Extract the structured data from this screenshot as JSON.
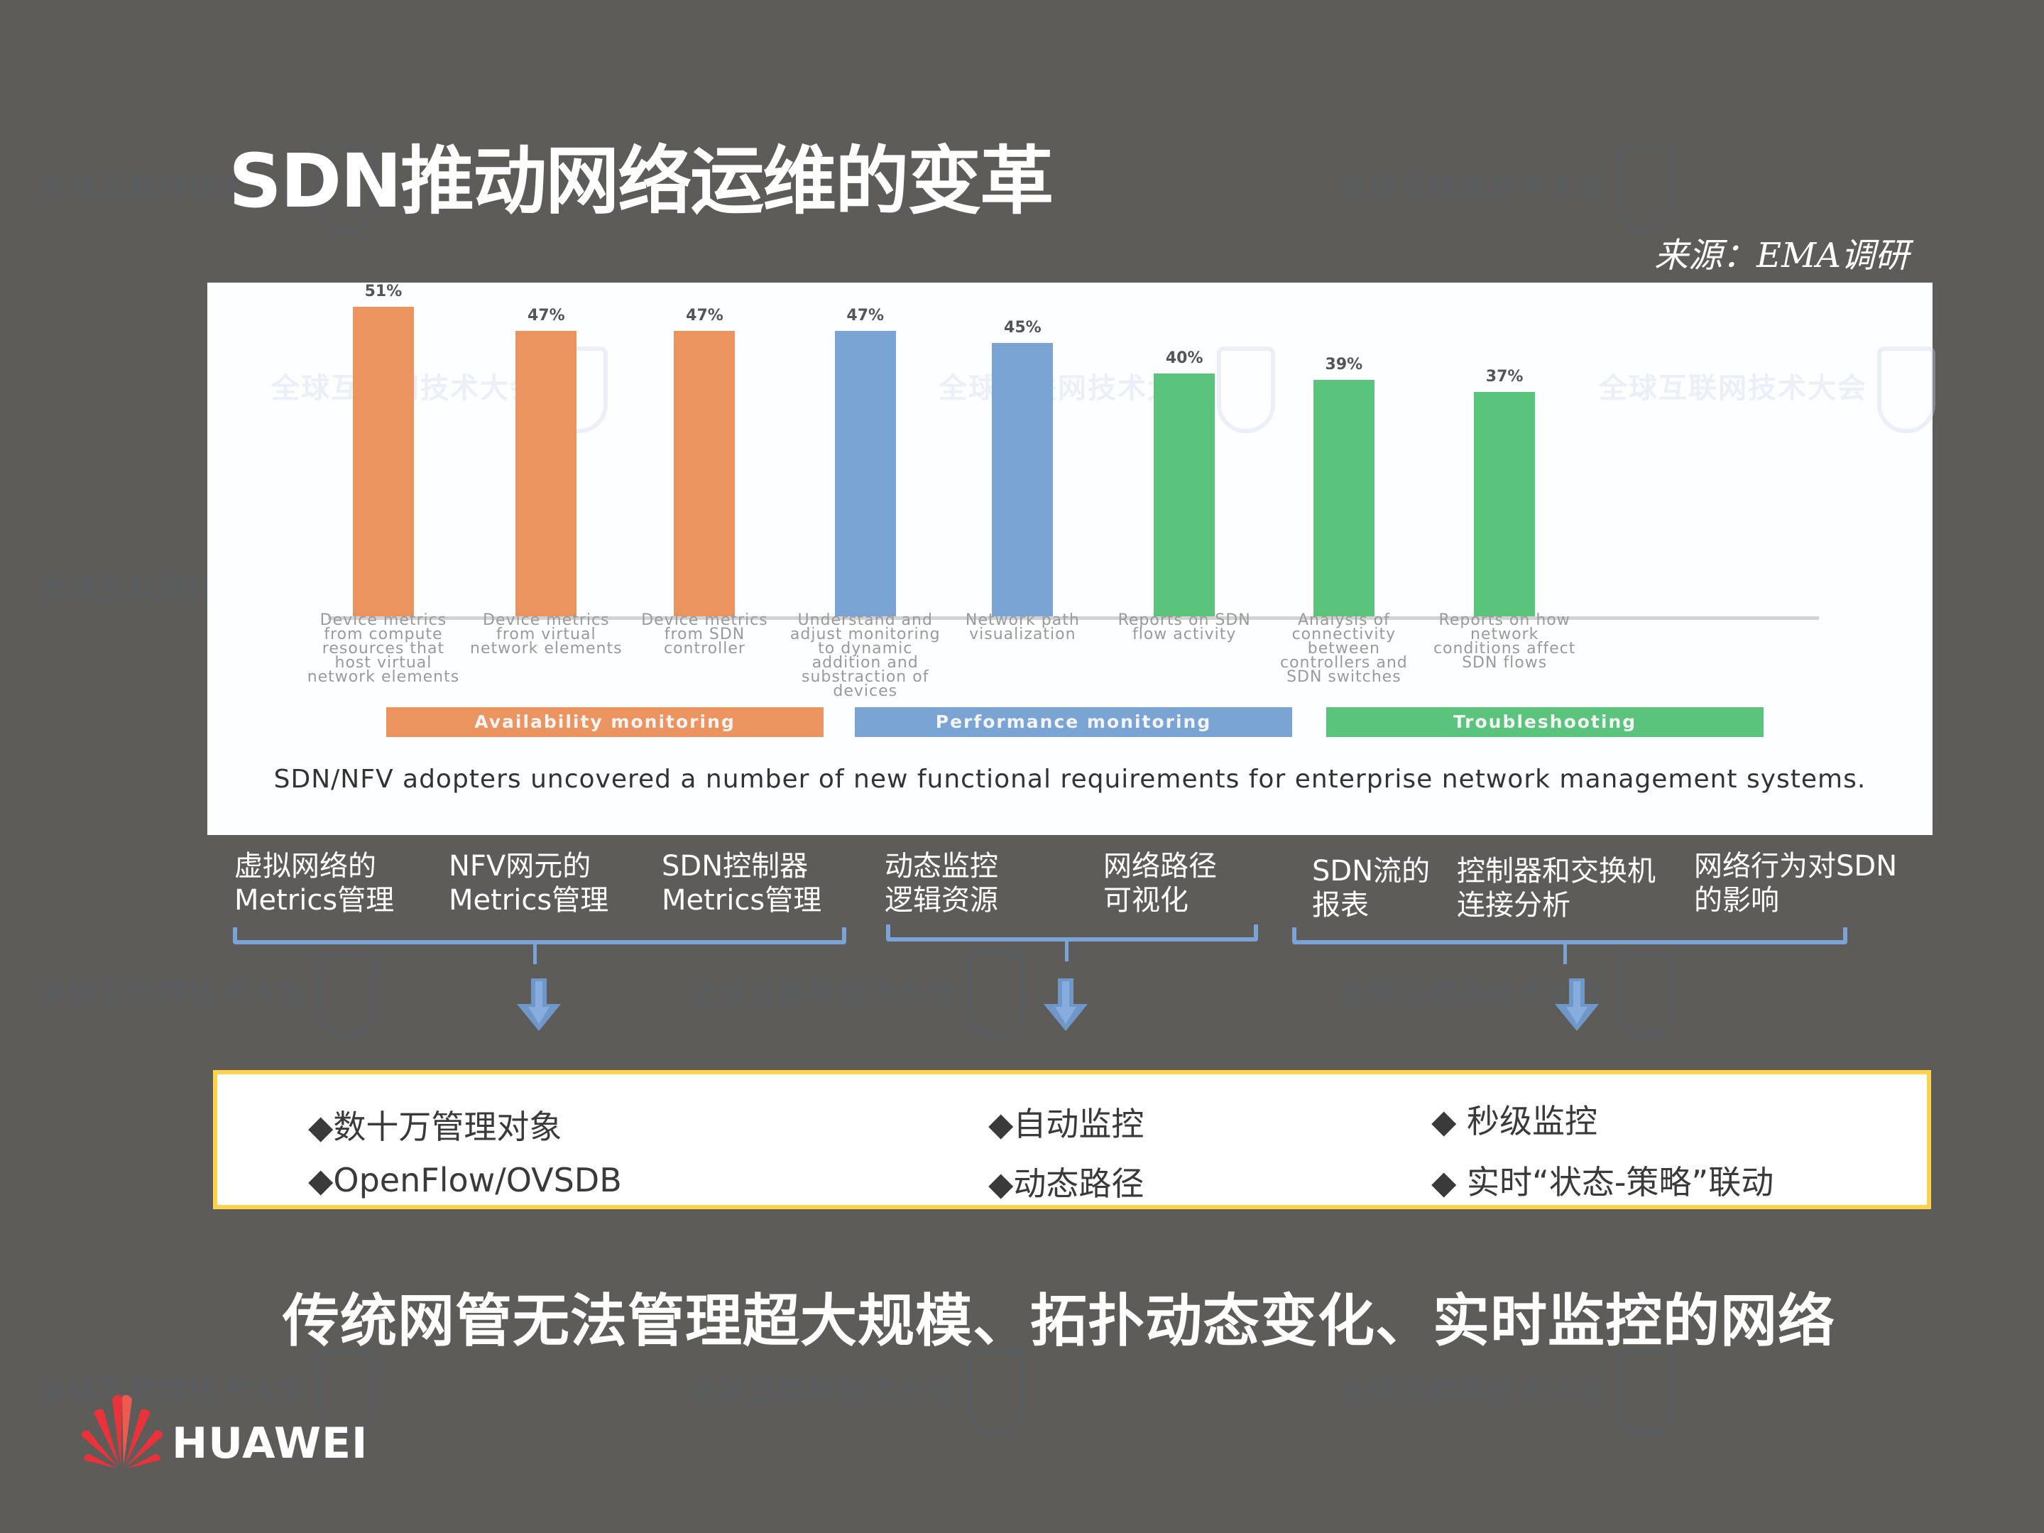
{
  "header": {
    "title": "SDN推动网络运维的变革",
    "source": "来源：EMA调研"
  },
  "chart_data": {
    "type": "bar",
    "title": "",
    "caption": "SDN/NFV adopters uncovered a number of new functional requirements for enterprise network management systems.",
    "xlabel": "",
    "ylabel": "",
    "ylim": [
      0,
      55
    ],
    "grid": false,
    "legend_position": "bottom",
    "categories": [
      "Device metrics from compute resources that host virtual network elements",
      "Device metrics from virtual network elements",
      "Device metrics from SDN controller",
      "Understand and adjust monitoring to dynamic addition and substraction of devices",
      "Network path visualization",
      "Reports on SDN flow activity",
      "Analysis of connectivity between controllers and SDN switches",
      "Reports on how network conditions affect SDN flows"
    ],
    "values": [
      51,
      47,
      47,
      47,
      45,
      40,
      39,
      37
    ],
    "value_labels": [
      "51%",
      "47%",
      "47%",
      "47%",
      "45%",
      "40%",
      "39%",
      "37%"
    ],
    "groups": [
      {
        "name": "Availability monitoring",
        "color": "#ec9460",
        "indices": [
          0,
          1,
          2
        ]
      },
      {
        "name": "Performance monitoring",
        "color": "#7aa4d4",
        "indices": [
          3,
          4
        ]
      },
      {
        "name": "Troubleshooting",
        "color": "#5ac47c",
        "indices": [
          5,
          6,
          7
        ]
      }
    ],
    "category_lines": [
      [
        "Device metrics",
        "from compute",
        "resources that",
        "host virtual",
        "network elements"
      ],
      [
        "Device metrics",
        "from virtual",
        "network elements"
      ],
      [
        "Device metrics",
        "from SDN",
        "controller"
      ],
      [
        "Understand and",
        "adjust monitoring",
        "to dynamic",
        "addition and",
        "substraction of",
        "devices"
      ],
      [
        "Network path",
        "visualization"
      ],
      [
        "Reports on SDN",
        "flow activity"
      ],
      [
        "Analysis of",
        "connectivity",
        "between",
        "controllers and",
        "SDN switches"
      ],
      [
        "Reports on how",
        "network",
        "conditions affect",
        "SDN flows"
      ]
    ]
  },
  "cn_labels": [
    {
      "line1": "虚拟网络的",
      "line2": "Metrics管理"
    },
    {
      "line1": "NFV网元的",
      "line2": "Metrics管理"
    },
    {
      "line1": "SDN控制器",
      "line2": "Metrics管理"
    },
    {
      "line1": "动态监控",
      "line2": "逻辑资源"
    },
    {
      "line1": "网络路径",
      "line2": "可视化"
    },
    {
      "line1": "SDN流的",
      "line2": "报表"
    },
    {
      "line1": "控制器和交换机",
      "line2": "连接分析"
    },
    {
      "line1": "网络行为对SDN",
      "line2": "的影响"
    }
  ],
  "requirements": {
    "col1": [
      "◆数十万管理对象",
      "◆OpenFlow/OVSDB"
    ],
    "col2": [
      "◆自动监控",
      "◆动态路径"
    ],
    "col3": [
      "◆ 秒级监控",
      "◆ 实时“状态-策略”联动"
    ]
  },
  "conclusion": "传统网管无法管理超大规模、拓扑动态变化、实时监控的网络",
  "footer": {
    "brand": "HUAWEI"
  },
  "colors": {
    "background": "#5e5c58",
    "orange": "#ec9460",
    "blue": "#7aa4d4",
    "green": "#5ac47c",
    "bracket": "#7ca3d6",
    "box_border": "#ffd24a",
    "huawei_red": "#e8333a"
  }
}
